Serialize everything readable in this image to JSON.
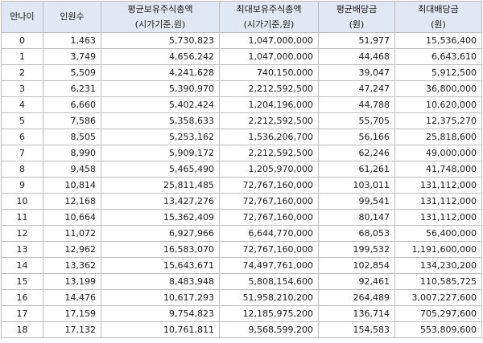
{
  "headers": [
    {
      "label": "만나이",
      "sub": ""
    },
    {
      "label": "인원수",
      "sub": ""
    },
    {
      "label": "평균보유주식총액",
      "sub": "(시가기준,원)"
    },
    {
      "label": "최대보유주식총액",
      "sub": "(시가기준,원)"
    },
    {
      "label": "평균배당금",
      "sub": "(원)"
    },
    {
      "label": "최대배당금",
      "sub": "(원)"
    }
  ],
  "rows": [
    [
      "0",
      "1,463",
      "5,730,823",
      "1,047,000,000",
      "51,977",
      "15,536,400"
    ],
    [
      "1",
      "3,749",
      "4,656,242",
      "1,047,000,000",
      "44,468",
      "6,643,610"
    ],
    [
      "2",
      "5,509",
      "4,241,628",
      "740,150,000",
      "39,047",
      "5,912,500"
    ],
    [
      "3",
      "6,231",
      "5,390,970",
      "2,212,592,500",
      "47,247",
      "36,800,000"
    ],
    [
      "4",
      "6,660",
      "5,402,424",
      "1,204,196,000",
      "44,788",
      "10,620,000"
    ],
    [
      "5",
      "7,586",
      "5,358,633",
      "2,212,592,500",
      "55,705",
      "12,375,270"
    ],
    [
      "6",
      "8,505",
      "5,253,162",
      "1,536,206,700",
      "56,166",
      "25,818,600"
    ],
    [
      "7",
      "8,990",
      "5,909,172",
      "2,212,592,500",
      "62,246",
      "49,000,000"
    ],
    [
      "8",
      "9,458",
      "5,465,490",
      "1,205,970,000",
      "61,261",
      "41,748,000"
    ],
    [
      "9",
      "10,814",
      "25,811,485",
      "72,767,160,000",
      "103,011",
      "131,112,000"
    ],
    [
      "10",
      "12,168",
      "13,427,276",
      "72,767,160,000",
      "99,541",
      "131,112,000"
    ],
    [
      "11",
      "10,664",
      "15,362,409",
      "72,767,160,000",
      "80,147",
      "131,112,000"
    ],
    [
      "12",
      "11,072",
      "6,927,966",
      "6,644,770,000",
      "68,053",
      "56,400,000"
    ],
    [
      "13",
      "12,962",
      "16,583,070",
      "72,767,160,000",
      "199,532",
      "1,191,600,000"
    ],
    [
      "14",
      "13,362",
      "15,643,671",
      "74,497,761,000",
      "102,854",
      "134,230,200"
    ],
    [
      "15",
      "13,199",
      "8,483,948",
      "5,808,154,600",
      "92,461",
      "110,585,725"
    ],
    [
      "16",
      "14,476",
      "10,617,293",
      "51,958,210,200",
      "264,489",
      "3,007,227,600"
    ],
    [
      "17",
      "17,159",
      "9,754,823",
      "12,185,975,200",
      "136,714",
      "705,297,600"
    ],
    [
      "18",
      "17,132",
      "10,761,811",
      "9,568,599,200",
      "154,583",
      "553,809,600"
    ]
  ]
}
